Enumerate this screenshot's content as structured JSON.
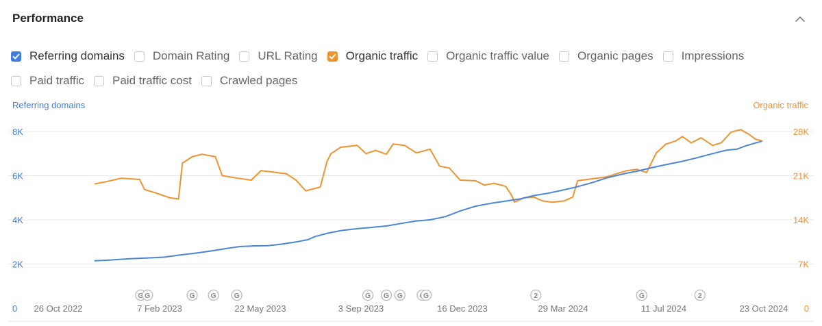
{
  "header": {
    "title": "Performance",
    "collapse_icon": "chevron-up-icon"
  },
  "metrics": {
    "row1": [
      {
        "label": "Referring domains",
        "checked": true,
        "color": "#3f7de0"
      },
      {
        "label": "Domain Rating",
        "checked": false
      },
      {
        "label": "URL Rating",
        "checked": false
      },
      {
        "label": "Organic traffic",
        "checked": true,
        "color": "#f0922e"
      },
      {
        "label": "Organic traffic value",
        "checked": false
      },
      {
        "label": "Organic pages",
        "checked": false
      },
      {
        "label": "Impressions",
        "checked": false
      }
    ],
    "row2": [
      {
        "label": "Paid traffic",
        "checked": false
      },
      {
        "label": "Paid traffic cost",
        "checked": false
      },
      {
        "label": "Crawled pages",
        "checked": false
      }
    ]
  },
  "chart_data": {
    "type": "line",
    "left_axis_label": "Referring domains",
    "right_axis_label": "Organic traffic",
    "left_ticks": [
      "0",
      "2K",
      "4K",
      "6K",
      "8K"
    ],
    "right_ticks": [
      "0",
      "7K",
      "14K",
      "21K",
      "28K"
    ],
    "left_ylim": [
      0,
      8000
    ],
    "right_ylim": [
      0,
      28000
    ],
    "x_tick_labels": [
      "26 Oct 2022",
      "7 Feb 2023",
      "22 May 2023",
      "3 Sep 2023",
      "16 Dec 2023",
      "29 Mar 2024",
      "11 Jul 2024",
      "23 Oct 2024"
    ],
    "xlim": [
      "2022-10-26",
      "2024-10-23"
    ],
    "grid": true,
    "colors": {
      "referring_domains": "#4a86d8",
      "organic_traffic": "#f0922e",
      "grid": "#e8e8e8",
      "left_axis": "#3f7de0",
      "right_axis": "#f0922e"
    },
    "series": [
      {
        "name": "Referring domains",
        "axis": "left",
        "points": [
          [
            "2022-12-05",
            2150
          ],
          [
            "2022-12-20",
            2180
          ],
          [
            "2023-01-10",
            2240
          ],
          [
            "2023-01-31",
            2280
          ],
          [
            "2023-02-14",
            2310
          ],
          [
            "2023-03-01",
            2400
          ],
          [
            "2023-03-20",
            2500
          ],
          [
            "2023-04-05",
            2600
          ],
          [
            "2023-04-19",
            2700
          ],
          [
            "2023-05-03",
            2790
          ],
          [
            "2023-05-17",
            2820
          ],
          [
            "2023-06-01",
            2830
          ],
          [
            "2023-06-15",
            2900
          ],
          [
            "2023-06-30",
            3000
          ],
          [
            "2023-07-12",
            3100
          ],
          [
            "2023-07-20",
            3250
          ],
          [
            "2023-08-02",
            3400
          ],
          [
            "2023-08-16",
            3520
          ],
          [
            "2023-09-01",
            3600
          ],
          [
            "2023-09-14",
            3650
          ],
          [
            "2023-10-01",
            3720
          ],
          [
            "2023-10-18",
            3850
          ],
          [
            "2023-11-01",
            3950
          ],
          [
            "2023-11-15",
            4000
          ],
          [
            "2023-12-01",
            4150
          ],
          [
            "2023-12-16",
            4400
          ],
          [
            "2024-01-01",
            4620
          ],
          [
            "2024-01-17",
            4750
          ],
          [
            "2024-02-01",
            4850
          ],
          [
            "2024-02-16",
            4950
          ],
          [
            "2024-03-01",
            5100
          ],
          [
            "2024-03-15",
            5200
          ],
          [
            "2024-03-29",
            5330
          ],
          [
            "2024-04-15",
            5500
          ],
          [
            "2024-05-01",
            5700
          ],
          [
            "2024-05-15",
            5900
          ],
          [
            "2024-06-01",
            6080
          ],
          [
            "2024-06-15",
            6200
          ],
          [
            "2024-07-01",
            6370
          ],
          [
            "2024-07-15",
            6500
          ],
          [
            "2024-08-01",
            6650
          ],
          [
            "2024-08-15",
            6800
          ],
          [
            "2024-09-01",
            7000
          ],
          [
            "2024-09-15",
            7150
          ],
          [
            "2024-09-26",
            7200
          ],
          [
            "2024-10-05",
            7350
          ],
          [
            "2024-10-15",
            7480
          ],
          [
            "2024-10-21",
            7550
          ]
        ]
      },
      {
        "name": "Organic traffic",
        "axis": "right",
        "points": [
          [
            "2022-12-05",
            19700
          ],
          [
            "2022-12-15",
            20000
          ],
          [
            "2023-01-01",
            20600
          ],
          [
            "2023-01-20",
            20400
          ],
          [
            "2023-01-25",
            18800
          ],
          [
            "2023-02-05",
            18300
          ],
          [
            "2023-02-20",
            17500
          ],
          [
            "2023-03-01",
            17300
          ],
          [
            "2023-03-05",
            23000
          ],
          [
            "2023-03-15",
            24000
          ],
          [
            "2023-03-25",
            24400
          ],
          [
            "2023-04-08",
            24000
          ],
          [
            "2023-04-15",
            21000
          ],
          [
            "2023-05-01",
            20600
          ],
          [
            "2023-05-15",
            20300
          ],
          [
            "2023-05-25",
            21800
          ],
          [
            "2023-06-05",
            21600
          ],
          [
            "2023-06-20",
            21300
          ],
          [
            "2023-06-30",
            20300
          ],
          [
            "2023-07-10",
            18600
          ],
          [
            "2023-07-25",
            19200
          ],
          [
            "2023-08-01",
            23300
          ],
          [
            "2023-08-05",
            24500
          ],
          [
            "2023-08-15",
            25500
          ],
          [
            "2023-09-01",
            25800
          ],
          [
            "2023-09-10",
            24500
          ],
          [
            "2023-09-20",
            25000
          ],
          [
            "2023-10-01",
            24400
          ],
          [
            "2023-10-08",
            26000
          ],
          [
            "2023-10-20",
            25800
          ],
          [
            "2023-11-01",
            24600
          ],
          [
            "2023-11-15",
            25200
          ],
          [
            "2023-11-25",
            22500
          ],
          [
            "2023-12-05",
            22200
          ],
          [
            "2023-12-16",
            20300
          ],
          [
            "2024-01-01",
            20200
          ],
          [
            "2024-01-10",
            19500
          ],
          [
            "2024-01-20",
            19800
          ],
          [
            "2024-02-01",
            19300
          ],
          [
            "2024-02-07",
            17900
          ],
          [
            "2024-02-10",
            16800
          ],
          [
            "2024-02-20",
            17500
          ],
          [
            "2024-03-01",
            17600
          ],
          [
            "2024-03-10",
            17000
          ],
          [
            "2024-03-20",
            16800
          ],
          [
            "2024-04-01",
            17000
          ],
          [
            "2024-04-10",
            17600
          ],
          [
            "2024-04-15",
            20200
          ],
          [
            "2024-04-25",
            20400
          ],
          [
            "2024-05-15",
            20800
          ],
          [
            "2024-05-25",
            21300
          ],
          [
            "2024-06-05",
            21800
          ],
          [
            "2024-06-15",
            22000
          ],
          [
            "2024-06-25",
            21500
          ],
          [
            "2024-07-05",
            24600
          ],
          [
            "2024-07-15",
            26000
          ],
          [
            "2024-07-25",
            26500
          ],
          [
            "2024-08-01",
            27200
          ],
          [
            "2024-08-10",
            26200
          ],
          [
            "2024-08-20",
            27000
          ],
          [
            "2024-09-01",
            25800
          ],
          [
            "2024-09-10",
            26200
          ],
          [
            "2024-09-20",
            27900
          ],
          [
            "2024-09-30",
            28300
          ],
          [
            "2024-10-08",
            27600
          ],
          [
            "2024-10-15",
            26800
          ],
          [
            "2024-10-22",
            26500
          ]
        ]
      }
    ],
    "annotations": [
      {
        "date": "2023-01-21",
        "label": "G"
      },
      {
        "date": "2023-01-28",
        "label": "G"
      },
      {
        "date": "2023-03-15",
        "label": "G"
      },
      {
        "date": "2023-04-06",
        "label": "G"
      },
      {
        "date": "2023-04-30",
        "label": "G"
      },
      {
        "date": "2023-09-12",
        "label": "G"
      },
      {
        "date": "2023-10-01",
        "label": "G"
      },
      {
        "date": "2023-10-15",
        "label": "G"
      },
      {
        "date": "2023-11-07",
        "label": "G"
      },
      {
        "date": "2023-11-11",
        "label": "G"
      },
      {
        "date": "2024-03-03",
        "label": "2"
      },
      {
        "date": "2024-06-20",
        "label": "G"
      },
      {
        "date": "2024-08-19",
        "label": "2"
      }
    ]
  }
}
